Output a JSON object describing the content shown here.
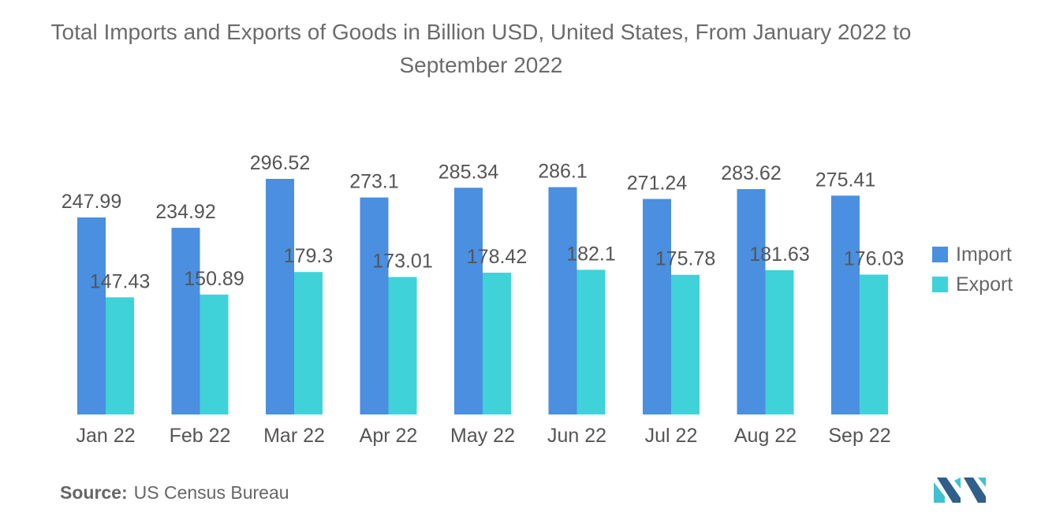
{
  "title": "Total Imports and Exports of Goods in Billion USD, United States, From January 2022 to September 2022",
  "source": {
    "label": "Source:",
    "text": "US Census Bureau"
  },
  "colors": {
    "import": "#4a8fe0",
    "export": "#3fd2d9",
    "label": "#555555",
    "logo_dark": "#2f5f8a",
    "logo_light": "#3fc1d0"
  },
  "chart_data": {
    "type": "bar",
    "title": "Total Imports and Exports of Goods in Billion USD, United States, From January 2022 to September 2022",
    "xlabel": "",
    "ylabel": "",
    "categories": [
      "Jan 22",
      "Feb 22",
      "Mar 22",
      "Apr 22",
      "May 22",
      "Jun 22",
      "Jul 22",
      "Aug 22",
      "Sep 22"
    ],
    "series": [
      {
        "name": "Import",
        "values": [
          247.99,
          234.92,
          296.52,
          273.1,
          285.34,
          286.1,
          271.24,
          283.62,
          275.41
        ],
        "labels": [
          "247.99",
          "234.92",
          "296.52",
          "273.1",
          "285.34",
          "286.1",
          "271.24",
          "283.62",
          "275.41"
        ]
      },
      {
        "name": "Export",
        "values": [
          147.43,
          150.89,
          179.3,
          173.01,
          178.42,
          182.1,
          175.78,
          181.63,
          176.03
        ],
        "labels": [
          "147.43",
          "150.89",
          "179.3",
          "173.01",
          "178.42",
          "182.1",
          "175.78",
          "181.63",
          "176.03"
        ]
      }
    ],
    "ylim": [
      0,
      296.52
    ],
    "grid": false,
    "legend": "right"
  }
}
